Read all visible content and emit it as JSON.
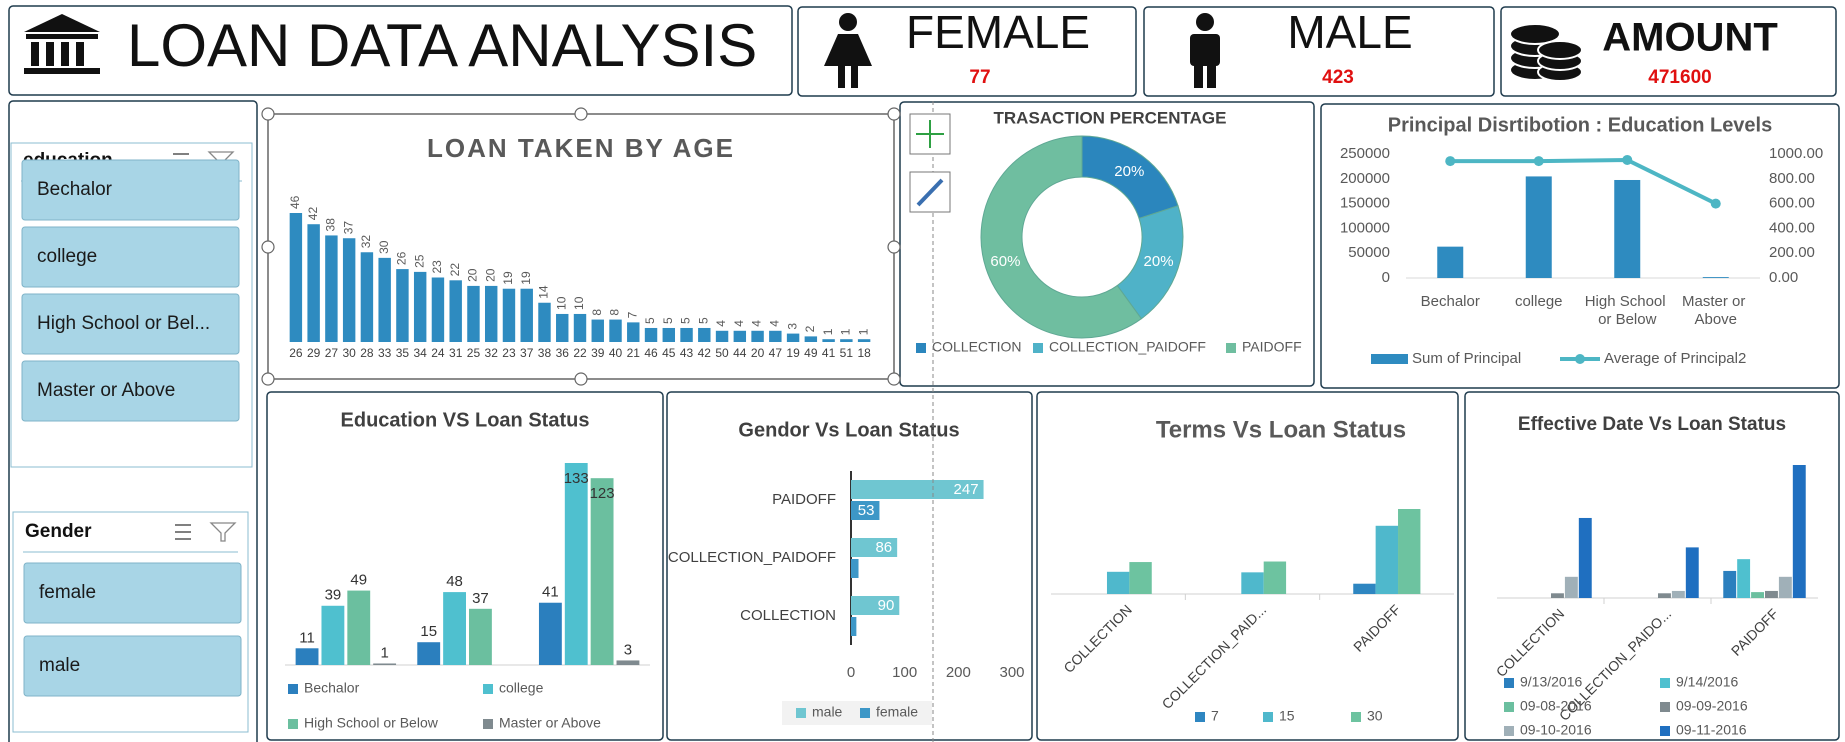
{
  "header": {
    "title": "LOAN DATA ANALYSIS"
  },
  "kpis": [
    {
      "label": "FEMALE",
      "value": 77
    },
    {
      "label": "MALE",
      "value": 423
    },
    {
      "label": "AMOUNT",
      "value": 471600
    }
  ],
  "slicers": [
    {
      "title": "education",
      "items": [
        "Bechalor",
        "college",
        "High School or Bel...",
        "Master or Above"
      ]
    },
    {
      "title": "Gender",
      "items": [
        "female",
        "male"
      ]
    }
  ],
  "chart_data": [
    {
      "type": "bar",
      "title": "LOAN TAKEN BY AGE",
      "categories": [
        26,
        29,
        27,
        30,
        28,
        33,
        35,
        34,
        24,
        31,
        25,
        32,
        23,
        37,
        38,
        36,
        22,
        39,
        40,
        21,
        46,
        45,
        43,
        42,
        50,
        44,
        20,
        47,
        19,
        49,
        41,
        51,
        18
      ],
      "values": [
        46,
        42,
        38,
        37,
        32,
        30,
        26,
        25,
        23,
        22,
        20,
        20,
        19,
        19,
        14,
        10,
        10,
        8,
        8,
        7,
        5,
        5,
        5,
        5,
        4,
        4,
        4,
        4,
        3,
        2,
        1,
        1,
        1
      ],
      "color": "#2e8bc0"
    },
    {
      "type": "donut",
      "title": "TRASACTION PERCENTAGE",
      "categories": [
        "COLLECTION",
        "COLLECTION_PAIDOFF",
        "PAIDOFF"
      ],
      "values": [
        20,
        20,
        60
      ],
      "value_labels": [
        "20%",
        "20%",
        "60%"
      ],
      "colors": [
        "#2b86bd",
        "#4fb2c8",
        "#6fbea0"
      ],
      "legend": "bottom"
    },
    {
      "type": "combo",
      "title": "Principal Disrtibotion : Education Levels",
      "categories": [
        "Bechalor",
        "college",
        "High School or Below",
        "Master or Above"
      ],
      "series": [
        {
          "name": "Sum of Principal",
          "type": "bar",
          "color": "#2e8bc0",
          "values": [
            63200,
            204800,
            197600,
            1800
          ]
        },
        {
          "name": "Average of Principal2",
          "type": "line",
          "axis": "y2",
          "color": "#4db6c4",
          "values": [
            943,
            943,
            952,
            600
          ]
        }
      ],
      "ylim": [
        0,
        250000
      ],
      "yticks": [
        0,
        50000,
        100000,
        150000,
        200000,
        250000
      ],
      "y2lim": [
        0,
        1000
      ],
      "y2ticks": [
        {
          "value": 0,
          "label": "0.00"
        },
        {
          "value": 200,
          "label": "200.00"
        },
        {
          "value": 400,
          "label": "400.00"
        },
        {
          "value": 600,
          "label": "600.00"
        },
        {
          "value": 800,
          "label": "800.00"
        },
        {
          "value": 1000,
          "label": "1000.00"
        }
      ],
      "legend": "bottom"
    },
    {
      "type": "bar",
      "title": "Education VS Loan Status",
      "categories": [
        null,
        null,
        null
      ],
      "series": [
        {
          "name": "Bechalor",
          "color": "#2b7fbe",
          "values": [
            11,
            15,
            41
          ]
        },
        {
          "name": "college",
          "color": "#4fc0cf",
          "values": [
            39,
            48,
            133
          ]
        },
        {
          "name": "High School or Below",
          "color": "#6bbf9f",
          "values": [
            49,
            37,
            123
          ]
        },
        {
          "name": "Master or Above",
          "color": "#7f8a8f",
          "values": [
            1,
            null,
            3
          ]
        }
      ],
      "data_labels": true,
      "legend": "bottom"
    },
    {
      "type": "hbar",
      "title": "Gendor Vs Loan Status",
      "categories": [
        "COLLECTION",
        "COLLECTION_PAIDOFF",
        "PAIDOFF"
      ],
      "series": [
        {
          "name": "male",
          "color": "#6fc6d1",
          "values": [
            90,
            86,
            247
          ]
        },
        {
          "name": "female",
          "color": "#3d97c7",
          "values": [
            10,
            14,
            53
          ]
        }
      ],
      "xlim": [
        0,
        300
      ],
      "xticks": [
        0,
        100,
        200,
        300
      ],
      "legend": "bottom"
    },
    {
      "type": "bar",
      "title": "Terms Vs Loan Status",
      "categories": [
        "COLLECTION",
        "COLLECTION_PAID...",
        "PAIDOFF"
      ],
      "series": [
        {
          "name": "7",
          "color": "#2e86c1",
          "values": [
            0,
            0,
            19
          ]
        },
        {
          "name": "15",
          "color": "#4fb8cc",
          "values": [
            41,
            40,
            126
          ]
        },
        {
          "name": "30",
          "color": "#6dc3a0",
          "values": [
            59,
            60,
            157
          ]
        }
      ],
      "legend": "bottom"
    },
    {
      "type": "bar",
      "title": "Effective Date Vs Loan Status",
      "categories": [
        "COLLECTION",
        "COLLECTION_PAIDO...",
        "PAIDOFF"
      ],
      "series": [
        {
          "name": "9/13/2016",
          "color": "#2b7fbe",
          "values": [
            0,
            0,
            23
          ]
        },
        {
          "name": "9/14/2016",
          "color": "#4fc0cf",
          "values": [
            0,
            0,
            33
          ]
        },
        {
          "name": "09-08-2016",
          "color": "#6bbf9f",
          "values": [
            0,
            0,
            5
          ]
        },
        {
          "name": "09-09-2016",
          "color": "#7f8a8f",
          "values": [
            4,
            4,
            6
          ]
        },
        {
          "name": "09-10-2016",
          "color": "#a0b0b8",
          "values": [
            18,
            6,
            18
          ]
        },
        {
          "name": "09-11-2016",
          "color": "#1f6fc0",
          "values": [
            68,
            43,
            113
          ]
        }
      ],
      "legend": "bottom"
    }
  ]
}
